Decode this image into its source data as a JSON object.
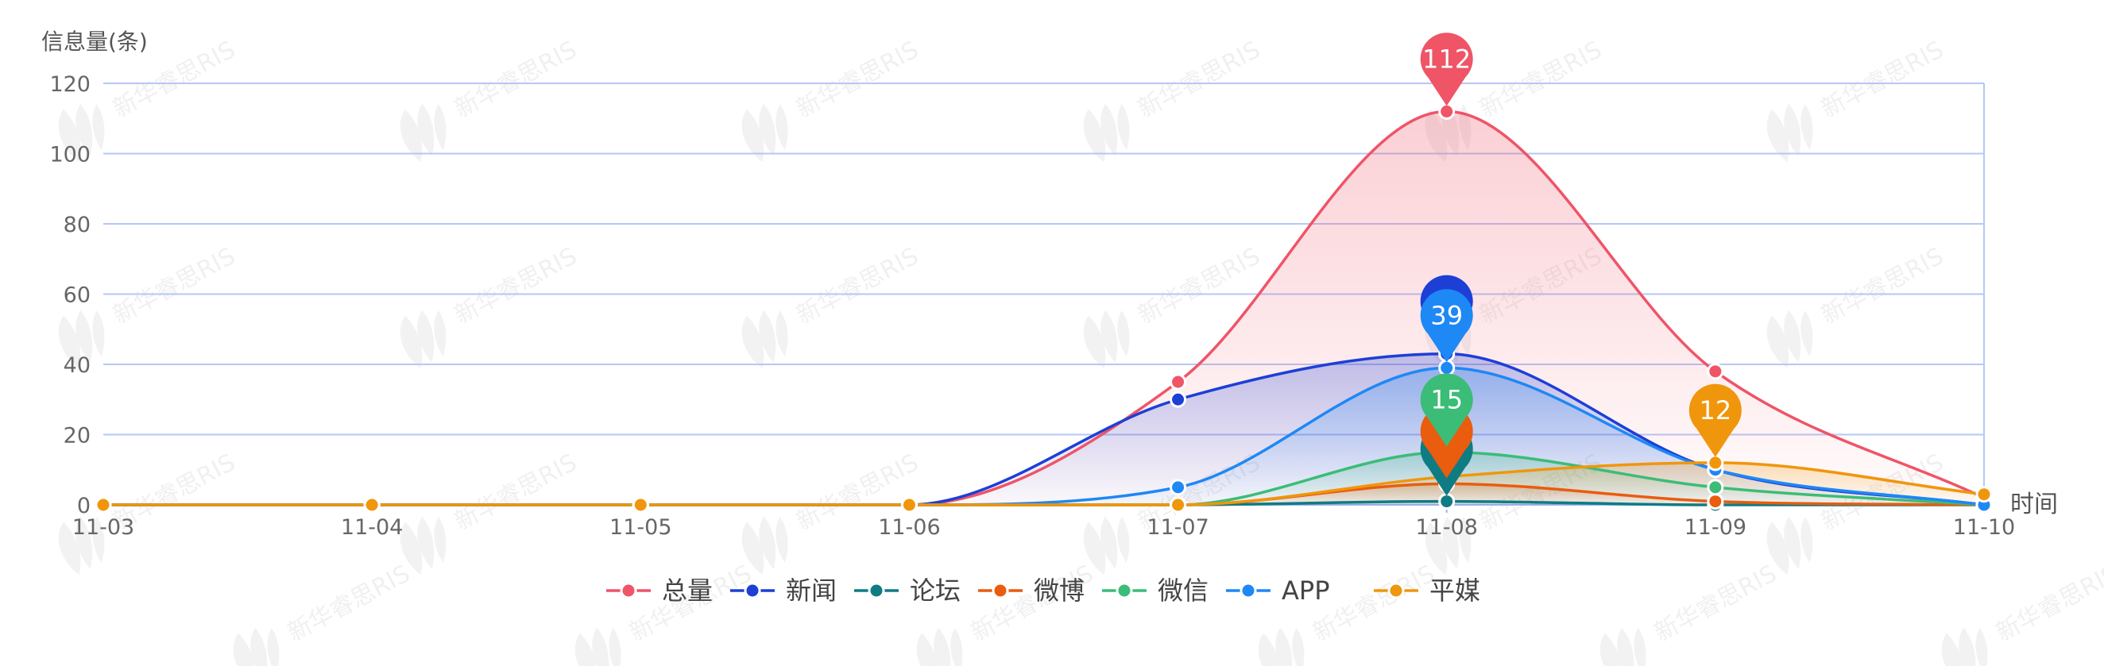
{
  "chart_data": {
    "type": "line",
    "smooth": true,
    "ylabel": "信息量(条)",
    "xlabel": "时间",
    "ylim": [
      0,
      120
    ],
    "yticks": [
      0,
      20,
      40,
      60,
      80,
      100,
      120
    ],
    "categories": [
      "11-03",
      "11-04",
      "11-05",
      "11-06",
      "11-07",
      "11-08",
      "11-09",
      "11-10"
    ],
    "grid": true,
    "legend_position": "bottom-center",
    "series": [
      {
        "name": "总量",
        "color": "#ef5467",
        "area": true,
        "values": [
          0,
          0,
          0,
          0,
          35,
          112,
          38,
          2
        ]
      },
      {
        "name": "新闻",
        "color": "#1d3fd6",
        "area": true,
        "values": [
          0,
          0,
          0,
          0,
          30,
          43,
          10,
          0
        ]
      },
      {
        "name": "论坛",
        "color": "#0f7c83",
        "area": true,
        "values": [
          0,
          0,
          0,
          0,
          0,
          1,
          0,
          0
        ]
      },
      {
        "name": "微博",
        "color": "#ea5c0e",
        "area": true,
        "values": [
          0,
          0,
          0,
          0,
          0,
          6,
          1,
          0
        ]
      },
      {
        "name": "微信",
        "color": "#3bbd77",
        "area": true,
        "values": [
          0,
          0,
          0,
          0,
          0,
          15,
          5,
          0
        ]
      },
      {
        "name": "APP",
        "color": "#1e88f5",
        "area": true,
        "values": [
          0,
          0,
          0,
          0,
          5,
          39,
          10,
          0
        ]
      },
      {
        "name": "平媒",
        "color": "#f0960c",
        "area": true,
        "values": [
          0,
          0,
          0,
          0,
          0,
          8,
          12,
          3
        ]
      }
    ],
    "max_markers": [
      {
        "series": "总量",
        "category": "11-08",
        "label": "112"
      },
      {
        "series": "新闻",
        "category": "11-08",
        "label": ""
      },
      {
        "series": "论坛",
        "category": "11-08",
        "label": ""
      },
      {
        "series": "微博",
        "category": "11-08",
        "label": ""
      },
      {
        "series": "微信",
        "category": "11-08",
        "label": "15"
      },
      {
        "series": "APP",
        "category": "11-08",
        "label": "39"
      },
      {
        "series": "平媒",
        "category": "11-09",
        "label": "12"
      }
    ]
  },
  "watermark": {
    "text": "新华睿思RIS"
  }
}
